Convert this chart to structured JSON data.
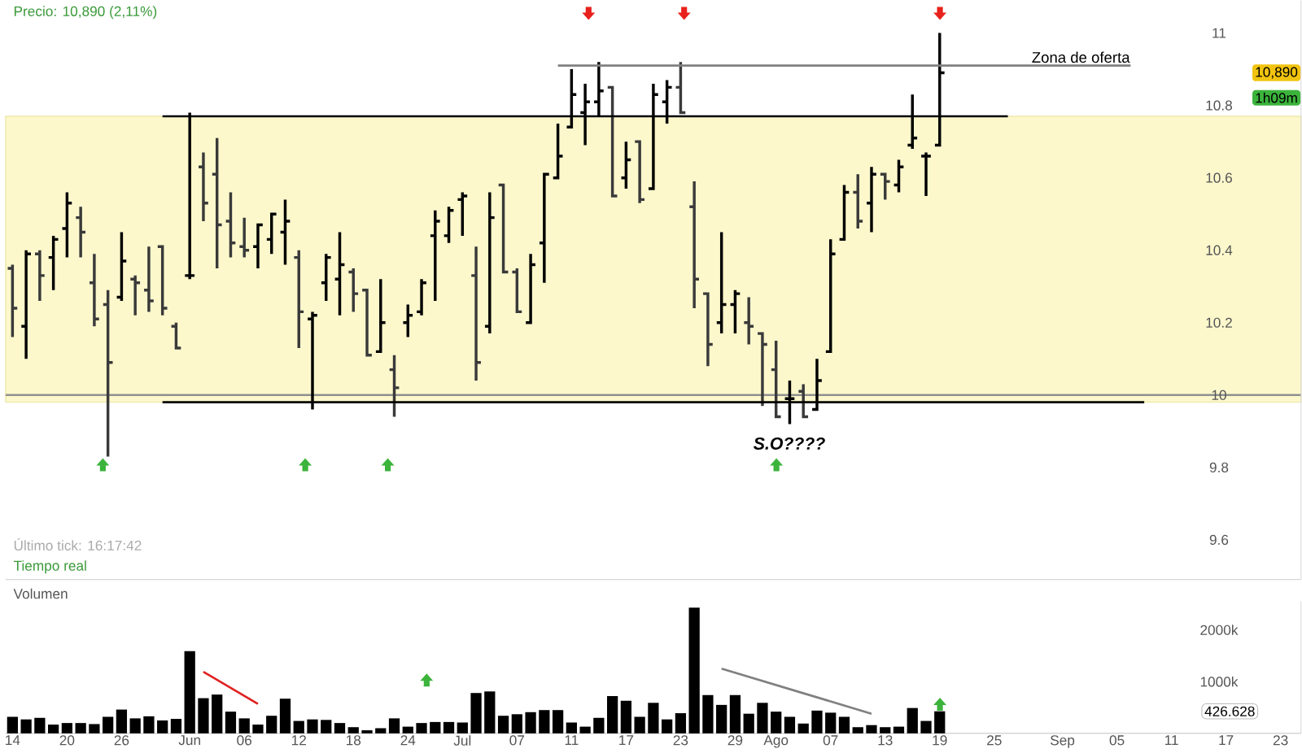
{
  "chart_data": [
    {
      "type": "candlestick",
      "title": "Precio: 10,890 (2,11%)",
      "categories": [
        null,
        null,
        null,
        null,
        null,
        null,
        null,
        null,
        null,
        null,
        null,
        null,
        null,
        null,
        null,
        null,
        null,
        null,
        null,
        null,
        null,
        null,
        null,
        null,
        null,
        null,
        null,
        null,
        null,
        null,
        null,
        null,
        null,
        null,
        null,
        null,
        null,
        null,
        null,
        null,
        null,
        null,
        null,
        null,
        null,
        null,
        null,
        null,
        null,
        null,
        null,
        null,
        null,
        null,
        null,
        null,
        null,
        null,
        null,
        null,
        null,
        null,
        null,
        null,
        null,
        null,
        null,
        null,
        null,
        null,
        null,
        null,
        null,
        null,
        null,
        null,
        null,
        null,
        null,
        null,
        null,
        null,
        null,
        null,
        null,
        null,
        null,
        null,
        null,
        null,
        null,
        null,
        null,
        null,
        null
      ],
      "ohlc": [
        [
          10.35,
          10.36,
          10.16,
          10.24
        ],
        [
          10.19,
          10.4,
          10.1,
          10.39
        ],
        [
          10.39,
          10.4,
          10.26,
          10.33
        ],
        [
          10.38,
          10.44,
          10.29,
          10.43
        ],
        [
          10.46,
          10.56,
          10.38,
          10.53
        ],
        [
          10.49,
          10.52,
          10.38,
          10.45
        ],
        [
          10.31,
          10.39,
          10.19,
          10.21
        ],
        [
          10.25,
          10.29,
          9.83,
          10.09
        ],
        [
          10.27,
          10.45,
          10.26,
          10.37
        ],
        [
          10.32,
          10.33,
          10.22,
          10.31
        ],
        [
          10.29,
          10.41,
          10.23,
          10.26
        ],
        [
          10.41,
          10.41,
          10.22,
          10.24
        ],
        [
          10.19,
          10.2,
          10.13,
          10.13
        ],
        [
          10.33,
          10.78,
          10.32,
          10.33
        ],
        [
          10.63,
          10.67,
          10.48,
          10.53
        ],
        [
          10.61,
          10.71,
          10.35,
          10.47
        ],
        [
          10.48,
          10.56,
          10.38,
          10.42
        ],
        [
          10.41,
          10.49,
          10.38,
          10.4
        ],
        [
          10.41,
          10.47,
          10.35,
          10.47
        ],
        [
          10.43,
          10.5,
          10.39,
          10.5
        ],
        [
          10.45,
          10.54,
          10.36,
          10.48
        ],
        [
          10.38,
          10.4,
          10.13,
          10.23
        ],
        [
          10.21,
          10.23,
          9.96,
          10.22
        ],
        [
          10.31,
          10.39,
          10.26,
          10.38
        ],
        [
          10.32,
          10.45,
          10.22,
          10.36
        ],
        [
          10.34,
          10.35,
          10.23,
          10.28
        ],
        [
          10.29,
          10.29,
          10.11,
          10.11
        ],
        [
          10.12,
          10.32,
          10.12,
          10.2
        ],
        [
          10.07,
          10.11,
          9.94,
          10.02
        ],
        [
          10.2,
          10.25,
          10.16,
          10.22
        ],
        [
          10.23,
          10.32,
          10.22,
          10.31
        ],
        [
          10.44,
          10.51,
          10.26,
          10.48
        ],
        [
          10.44,
          10.52,
          10.42,
          10.51
        ],
        [
          10.54,
          10.56,
          10.44,
          10.55
        ],
        [
          10.33,
          10.41,
          10.04,
          10.09
        ],
        [
          10.19,
          10.56,
          10.17,
          10.49
        ],
        [
          10.58,
          10.58,
          10.34,
          10.34
        ],
        [
          10.34,
          10.35,
          10.23,
          10.23
        ],
        [
          10.2,
          10.39,
          10.2,
          10.36
        ],
        [
          10.42,
          10.61,
          10.31,
          10.61
        ],
        [
          10.6,
          10.75,
          10.6,
          10.66
        ],
        [
          10.74,
          10.9,
          10.74,
          10.83
        ],
        [
          10.78,
          10.86,
          10.69,
          10.81
        ],
        [
          10.81,
          10.92,
          10.77,
          10.84
        ],
        [
          10.85,
          10.85,
          10.55,
          10.55
        ],
        [
          10.6,
          10.7,
          10.57,
          10.65
        ],
        [
          10.7,
          10.7,
          10.53,
          10.54
        ],
        [
          10.57,
          10.86,
          10.57,
          10.83
        ],
        [
          10.81,
          10.87,
          10.75,
          10.85
        ],
        [
          10.85,
          10.92,
          10.78,
          10.78
        ],
        [
          10.52,
          10.59,
          10.24,
          10.32
        ],
        [
          10.28,
          10.28,
          10.08,
          10.14
        ],
        [
          10.2,
          10.45,
          10.17,
          10.25
        ],
        [
          10.25,
          10.29,
          10.17,
          10.28
        ],
        [
          10.2,
          10.27,
          10.14,
          10.19
        ],
        [
          10.17,
          10.17,
          9.97,
          10.14
        ],
        [
          10.07,
          10.15,
          9.94,
          9.94
        ],
        [
          9.99,
          10.04,
          9.92,
          9.99
        ],
        [
          10.01,
          10.03,
          9.94,
          9.94
        ],
        [
          9.96,
          10.1,
          9.96,
          10.04
        ],
        [
          10.12,
          10.43,
          10.12,
          10.39
        ],
        [
          10.43,
          10.58,
          10.43,
          10.56
        ],
        [
          10.56,
          10.61,
          10.46,
          10.48
        ],
        [
          10.53,
          10.63,
          10.45,
          10.61
        ],
        [
          10.61,
          10.61,
          10.54,
          10.59
        ],
        [
          10.58,
          10.65,
          10.56,
          10.63
        ],
        [
          10.69,
          10.83,
          10.68,
          10.71
        ],
        [
          10.66,
          10.67,
          10.55,
          10.66
        ],
        [
          10.69,
          11.0,
          10.69,
          10.89
        ],
        null,
        null,
        null,
        null,
        null,
        null,
        null,
        null,
        null,
        null,
        null,
        null,
        null,
        null,
        null,
        null,
        null,
        null,
        null,
        null,
        null,
        null,
        null,
        null,
        null,
        null
      ],
      "series": [
        {
          "type": "line",
          "values": [
            null,
            null,
            null,
            null,
            null,
            null,
            null,
            null,
            null,
            null,
            null,
            10.77,
            10.77,
            10.77,
            10.77,
            10.77,
            10.77,
            10.77,
            10.77,
            10.77,
            10.77,
            10.77,
            10.77,
            10.77,
            10.77,
            10.77,
            10.77,
            10.77,
            10.77,
            10.77,
            10.77,
            10.77,
            10.77,
            10.77,
            10.77,
            10.77,
            10.77,
            10.77,
            10.77,
            10.77,
            10.77,
            10.77,
            10.77,
            10.77,
            10.77,
            10.77,
            10.77,
            10.77,
            10.77,
            10.77,
            10.77,
            10.77,
            10.77,
            10.77,
            10.77,
            10.77,
            10.77,
            10.77,
            10.77,
            10.77,
            10.77,
            10.77,
            10.77,
            10.77,
            10.77,
            10.77,
            10.77,
            10.77,
            10.77,
            10.77,
            10.77,
            10.77,
            10.77,
            10.77,
            null,
            null,
            null,
            null,
            null,
            null,
            null,
            null,
            null,
            null,
            null,
            null,
            null,
            null,
            null,
            null,
            null,
            null,
            null,
            null,
            null
          ],
          "color": "#000000"
        },
        {
          "type": "line",
          "values": [
            null,
            null,
            null,
            null,
            null,
            null,
            null,
            null,
            null,
            null,
            null,
            9.98,
            9.98,
            9.98,
            9.98,
            9.98,
            9.98,
            9.98,
            9.98,
            9.98,
            9.98,
            9.98,
            9.98,
            9.98,
            9.98,
            9.98,
            9.98,
            9.98,
            9.98,
            9.98,
            9.98,
            9.98,
            9.98,
            9.98,
            9.98,
            9.98,
            9.98,
            9.98,
            9.98,
            9.98,
            9.98,
            9.98,
            9.98,
            9.98,
            9.98,
            9.98,
            9.98,
            9.98,
            9.98,
            9.98,
            9.98,
            9.98,
            9.98,
            9.98,
            9.98,
            9.98,
            9.98,
            9.98,
            9.98,
            9.98,
            9.98,
            9.98,
            9.98,
            9.98,
            9.98,
            9.98,
            9.98,
            9.98,
            9.98,
            9.98,
            9.98,
            9.98,
            9.98,
            9.98,
            9.98,
            9.98,
            9.98,
            9.98,
            9.98,
            9.98,
            9.98,
            9.98,
            9.98,
            9.98,
            null,
            null,
            null,
            null,
            null,
            null,
            null,
            null,
            null,
            null,
            null
          ],
          "color": "#000000"
        },
        {
          "type": "line",
          "values": [
            null,
            null,
            null,
            null,
            null,
            null,
            null,
            null,
            null,
            null,
            null,
            null,
            null,
            null,
            null,
            null,
            null,
            null,
            null,
            null,
            null,
            null,
            null,
            null,
            null,
            null,
            null,
            null,
            null,
            null,
            null,
            null,
            null,
            null,
            null,
            null,
            null,
            null,
            null,
            null,
            10.91,
            10.91,
            10.91,
            10.91,
            10.91,
            10.91,
            10.91,
            10.91,
            10.91,
            10.91,
            10.91,
            10.91,
            10.91,
            10.91,
            10.91,
            10.91,
            10.91,
            10.91,
            10.91,
            10.91,
            10.91,
            10.91,
            10.91,
            10.91,
            10.91,
            10.91,
            10.91,
            10.91,
            10.91,
            10.91,
            10.91,
            10.91,
            10.91,
            10.91,
            10.91,
            10.91,
            10.91,
            10.91,
            10.91,
            10.91,
            10.91,
            10.91,
            10.91,
            null,
            null,
            null,
            null,
            null,
            null,
            null,
            null,
            null,
            null,
            null,
            null
          ],
          "color": "#808080"
        }
      ],
      "ylim": [
        9.49,
        11.09
      ],
      "yticks": [
        9.6,
        9.8,
        10,
        10.2,
        10.4,
        10.6,
        10.8,
        11
      ],
      "tick_labels": "y",
      "ref_lines": [
        {
          "axis": "y",
          "value": 10,
          "color": "#909090"
        }
      ],
      "bands": [
        {
          "axis": "y",
          "from": 9.98,
          "to": 10.77,
          "color": "#fcf8cc"
        }
      ],
      "annotations": [
        "Zona de oferta",
        "S.O????",
        {
          "text": "10,890",
          "y": 10.89
        },
        "1h09m",
        "Último tick: 16:17:42",
        "Tiempo real"
      ]
    },
    {
      "type": "bar",
      "title": "Volumen",
      "categories": [
        "14",
        null,
        null,
        null,
        "20",
        null,
        null,
        null,
        "26",
        null,
        null,
        null,
        null,
        "Jun",
        null,
        null,
        null,
        "06",
        null,
        null,
        null,
        "12",
        null,
        null,
        null,
        "18",
        null,
        null,
        null,
        "24",
        null,
        null,
        null,
        "Jul",
        null,
        null,
        null,
        "07",
        null,
        null,
        null,
        "11",
        null,
        null,
        null,
        "17",
        null,
        null,
        null,
        "23",
        null,
        null,
        null,
        "29",
        null,
        null,
        "Ago",
        null,
        null,
        null,
        "07",
        null,
        null,
        null,
        "13",
        null,
        null,
        null,
        "19",
        null,
        null,
        null,
        "25",
        null,
        null,
        null,
        null,
        "Sep",
        null,
        null,
        null,
        "05",
        null,
        null,
        null,
        "11",
        null,
        null,
        null,
        "17",
        null,
        null,
        null,
        "23",
        null
      ],
      "values": [
        320,
        270,
        300,
        170,
        200,
        200,
        180,
        320,
        460,
        290,
        330,
        250,
        280,
        1590,
        680,
        750,
        420,
        290,
        170,
        340,
        670,
        240,
        270,
        260,
        200,
        120,
        60,
        100,
        290,
        130,
        200,
        220,
        220,
        210,
        780,
        810,
        340,
        370,
        410,
        450,
        450,
        210,
        130,
        300,
        720,
        630,
        320,
        590,
        270,
        390,
        2430,
        740,
        550,
        740,
        380,
        590,
        420,
        320,
        190,
        440,
        400,
        320,
        120,
        160,
        120,
        130,
        490,
        240,
        426.628,
        null,
        null,
        null,
        null,
        null,
        null,
        null,
        null,
        null,
        null,
        null,
        null,
        null,
        null,
        null,
        null,
        null,
        null,
        null,
        null,
        null,
        null,
        null,
        null,
        null,
        null
      ],
      "color": "#000000",
      "series": [
        {
          "type": "line",
          "values": [
            null,
            null,
            null,
            null,
            null,
            null,
            null,
            null,
            null,
            null,
            null,
            null,
            null,
            null,
            1190,
            null,
            null,
            null,
            570,
            null,
            null,
            null,
            null,
            null,
            null,
            null,
            null,
            null,
            null,
            null,
            null,
            null,
            null,
            null,
            null,
            null,
            null,
            null,
            null,
            null,
            null,
            null,
            null,
            null,
            null,
            null,
            null,
            null,
            null,
            null,
            null,
            null,
            null,
            null,
            null,
            null,
            null,
            null,
            null,
            null,
            null,
            null,
            null,
            null,
            null,
            null,
            null,
            null,
            null,
            null,
            null,
            null,
            null,
            null,
            null,
            null,
            null,
            null,
            null,
            null,
            null,
            null,
            null,
            null,
            null,
            null,
            null,
            null,
            null,
            null,
            null,
            null,
            null,
            null,
            null
          ],
          "color": "#e02020"
        },
        {
          "type": "line",
          "values": [
            null,
            null,
            null,
            null,
            null,
            null,
            null,
            null,
            null,
            null,
            null,
            null,
            null,
            null,
            null,
            null,
            null,
            null,
            null,
            null,
            null,
            null,
            null,
            null,
            null,
            null,
            null,
            null,
            null,
            null,
            null,
            null,
            null,
            null,
            null,
            null,
            null,
            null,
            null,
            null,
            null,
            null,
            null,
            null,
            null,
            null,
            null,
            null,
            null,
            null,
            null,
            null,
            1250,
            null,
            null,
            null,
            null,
            null,
            null,
            null,
            null,
            null,
            null,
            380,
            null,
            null,
            null,
            null,
            null,
            null,
            null,
            null,
            null,
            null,
            null,
            null,
            null,
            null,
            null,
            null,
            null,
            null,
            null,
            null,
            null,
            null,
            null,
            null,
            null,
            null,
            null,
            null,
            null,
            null,
            null
          ],
          "color": "#808080"
        }
      ],
      "ylim": [
        0,
        2550
      ],
      "yticks": [
        {
          "value": 1000,
          "label": "1000k"
        },
        {
          "value": 2000,
          "label": "2000k"
        }
      ],
      "annotations": [
        "426.628"
      ]
    }
  ]
}
